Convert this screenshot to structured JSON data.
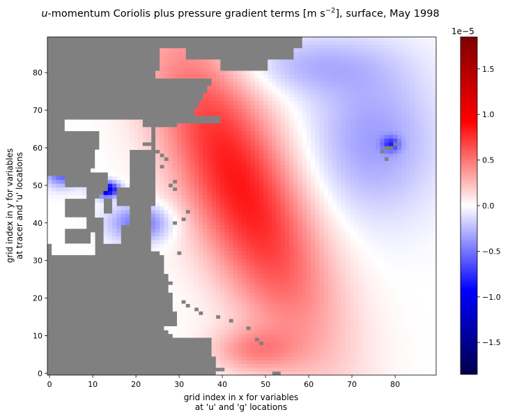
{
  "chart_data": {
    "type": "heatmap",
    "title_italic": "u",
    "title_rest": "-momentum Coriolis plus pressure gradient terms [m s",
    "title_exp": "−2",
    "title_tail": "], surface, May 1998",
    "xlabel_line1": "grid index in x for variables",
    "xlabel_line2": "at 'u' and 'g' locations",
    "ylabel_line1": "grid index in y for variables",
    "ylabel_line2": "at tracer and 'u' locations",
    "xlim": [
      -0.5,
      89.5
    ],
    "ylim": [
      -0.5,
      89.5
    ],
    "grid_nx": 90,
    "grid_ny": 90,
    "x_ticks": [
      0,
      10,
      20,
      30,
      40,
      50,
      60,
      70,
      80
    ],
    "y_ticks": [
      0,
      10,
      20,
      30,
      40,
      50,
      60,
      70,
      80
    ],
    "colorbar": {
      "colormap": "seismic",
      "vmin": -1.85,
      "vmax": 1.85,
      "multiplier": "1e−5",
      "ticks": [
        1.5,
        1.0,
        0.5,
        0.0,
        -0.5,
        -1.0,
        -1.5
      ],
      "tick_labels": [
        "1.5",
        "1.0",
        "0.5",
        "0.0",
        "−0.5",
        "−1.0",
        "−1.5"
      ]
    },
    "land_color": "#808080",
    "features": {
      "max_positive_center": {
        "x": 44,
        "y": 50,
        "value": 0.85
      },
      "negative_region_west": {
        "x": 20,
        "y": 40,
        "value": -0.55
      },
      "min_negative_spot": {
        "x": 13,
        "y": 49,
        "value": -1.7
      }
    }
  }
}
